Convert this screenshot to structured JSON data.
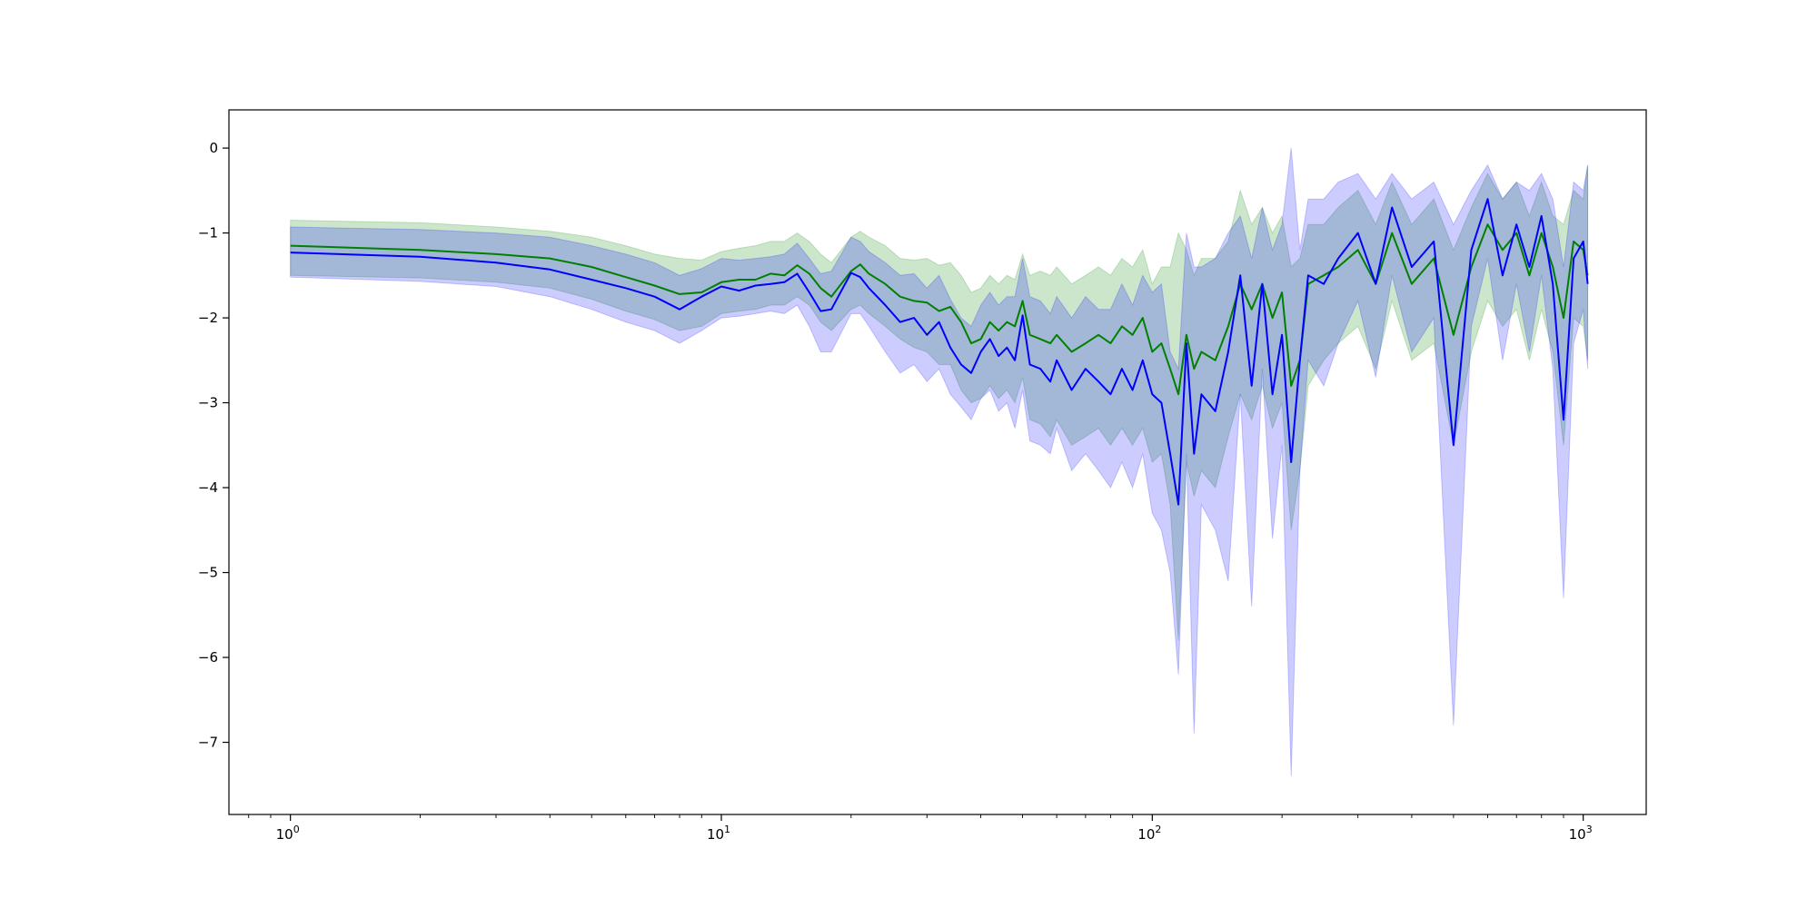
{
  "chart_data": {
    "type": "area",
    "xscale": "log",
    "xlim": [
      0.72,
      1400
    ],
    "ylim": [
      -7.85,
      0.45
    ],
    "grid": false,
    "legend": "none",
    "xticks": [
      {
        "value": 1,
        "base": "10",
        "exp": "0"
      },
      {
        "value": 10,
        "base": "10",
        "exp": "1"
      },
      {
        "value": 100,
        "base": "10",
        "exp": "2"
      },
      {
        "value": 1000,
        "base": "10",
        "exp": "3"
      }
    ],
    "yticks": [
      {
        "value": 0,
        "label": "0"
      },
      {
        "value": -1,
        "label": "−1"
      },
      {
        "value": -2,
        "label": "−2"
      },
      {
        "value": -3,
        "label": "−3"
      },
      {
        "value": -4,
        "label": "−4"
      },
      {
        "value": -5,
        "label": "−5"
      },
      {
        "value": -6,
        "label": "−6"
      },
      {
        "value": -7,
        "label": "−7"
      }
    ],
    "colors": {
      "green": "#008000",
      "blue": "#0000ff",
      "green_band": "#c9e3c9",
      "blue_band": "#ccccff",
      "overlap": "#9eb3d7"
    },
    "series": [
      {
        "color": "green",
        "x": [
          1,
          2,
          3,
          4,
          5,
          6,
          7,
          8,
          9,
          10,
          11,
          12,
          13,
          14,
          15,
          16,
          17,
          18,
          20,
          21,
          22,
          24,
          26,
          28,
          30,
          32,
          34,
          36,
          38,
          40,
          42,
          44,
          46,
          48,
          50,
          52,
          55,
          58,
          60,
          65,
          70,
          75,
          80,
          85,
          90,
          95,
          100,
          105,
          110,
          115,
          120,
          125,
          130,
          140,
          150,
          160,
          170,
          180,
          190,
          200,
          210,
          220,
          230,
          250,
          270,
          300,
          330,
          360,
          400,
          450,
          500,
          550,
          600,
          650,
          700,
          750,
          800,
          850,
          900,
          950,
          1000,
          1024
        ],
        "y": [
          -1.15,
          -1.2,
          -1.25,
          -1.3,
          -1.4,
          -1.52,
          -1.62,
          -1.72,
          -1.7,
          -1.58,
          -1.55,
          -1.55,
          -1.48,
          -1.5,
          -1.38,
          -1.48,
          -1.65,
          -1.75,
          -1.45,
          -1.37,
          -1.48,
          -1.6,
          -1.75,
          -1.8,
          -1.82,
          -1.92,
          -1.87,
          -2.05,
          -2.3,
          -2.25,
          -2.05,
          -2.15,
          -2.05,
          -2.1,
          -1.8,
          -2.2,
          -2.25,
          -2.3,
          -2.2,
          -2.4,
          -2.3,
          -2.2,
          -2.3,
          -2.1,
          -2.2,
          -2.0,
          -2.4,
          -2.3,
          -2.6,
          -2.9,
          -2.2,
          -2.6,
          -2.4,
          -2.5,
          -2.1,
          -1.6,
          -1.9,
          -1.6,
          -2.0,
          -1.7,
          -2.8,
          -2.5,
          -1.6,
          -1.5,
          -1.4,
          -1.2,
          -1.6,
          -1.0,
          -1.6,
          -1.3,
          -2.2,
          -1.4,
          -0.9,
          -1.2,
          -1.0,
          -1.5,
          -1.0,
          -1.4,
          -2.0,
          -1.1,
          -1.2,
          -1.5
        ],
        "lower": [
          -1.5,
          -1.53,
          -1.58,
          -1.65,
          -1.78,
          -1.92,
          -2.02,
          -2.15,
          -2.1,
          -1.95,
          -1.92,
          -1.9,
          -1.85,
          -1.85,
          -1.75,
          -1.85,
          -2.05,
          -2.15,
          -1.9,
          -1.85,
          -1.95,
          -2.1,
          -2.25,
          -2.35,
          -2.4,
          -2.55,
          -2.55,
          -2.85,
          -3.0,
          -2.95,
          -2.8,
          -2.95,
          -2.85,
          -3.0,
          -2.7,
          -3.2,
          -3.25,
          -3.4,
          -3.2,
          -3.5,
          -3.4,
          -3.3,
          -3.5,
          -3.3,
          -3.5,
          -3.3,
          -3.7,
          -3.6,
          -4.2,
          -5.8,
          -3.7,
          -4.1,
          -3.8,
          -4.0,
          -3.4,
          -2.9,
          -3.2,
          -2.8,
          -3.3,
          -3.0,
          -4.5,
          -3.8,
          -2.8,
          -2.5,
          -2.3,
          -2.1,
          -2.6,
          -1.8,
          -2.5,
          -2.3,
          -3.5,
          -2.4,
          -1.8,
          -2.1,
          -1.9,
          -2.5,
          -1.9,
          -2.4,
          -3.5,
          -2.0,
          -2.1,
          -2.5
        ],
        "upper": [
          -0.85,
          -0.88,
          -0.93,
          -0.98,
          -1.05,
          -1.15,
          -1.25,
          -1.3,
          -1.32,
          -1.22,
          -1.18,
          -1.15,
          -1.1,
          -1.1,
          -1.0,
          -1.1,
          -1.25,
          -1.35,
          -1.05,
          -0.98,
          -1.05,
          -1.15,
          -1.3,
          -1.32,
          -1.3,
          -1.38,
          -1.35,
          -1.5,
          -1.7,
          -1.65,
          -1.5,
          -1.6,
          -1.5,
          -1.55,
          -1.25,
          -1.5,
          -1.45,
          -1.5,
          -1.4,
          -1.6,
          -1.5,
          -1.4,
          -1.5,
          -1.3,
          -1.4,
          -1.2,
          -1.6,
          -1.4,
          -1.4,
          -1.0,
          -1.2,
          -1.5,
          -1.3,
          -1.3,
          -1.1,
          -0.5,
          -0.9,
          -0.7,
          -1.0,
          -0.8,
          -1.4,
          -1.3,
          -0.9,
          -0.9,
          -0.7,
          -0.5,
          -0.9,
          -0.4,
          -0.9,
          -0.6,
          -1.2,
          -0.7,
          -0.3,
          -0.6,
          -0.4,
          -0.8,
          -0.4,
          -0.8,
          -0.9,
          -0.5,
          -0.6,
          -0.2
        ]
      },
      {
        "color": "blue",
        "x": [
          1,
          2,
          3,
          4,
          5,
          6,
          7,
          8,
          9,
          10,
          11,
          12,
          13,
          14,
          15,
          16,
          17,
          18,
          20,
          21,
          22,
          24,
          26,
          28,
          30,
          32,
          34,
          36,
          38,
          40,
          42,
          44,
          46,
          48,
          50,
          52,
          55,
          58,
          60,
          65,
          70,
          75,
          80,
          85,
          90,
          95,
          100,
          105,
          110,
          115,
          120,
          125,
          130,
          140,
          150,
          160,
          170,
          180,
          190,
          200,
          210,
          220,
          230,
          250,
          270,
          300,
          330,
          360,
          400,
          450,
          500,
          550,
          600,
          650,
          700,
          750,
          800,
          850,
          900,
          950,
          1000,
          1024
        ],
        "y": [
          -1.23,
          -1.28,
          -1.35,
          -1.43,
          -1.55,
          -1.65,
          -1.75,
          -1.9,
          -1.75,
          -1.63,
          -1.68,
          -1.62,
          -1.6,
          -1.58,
          -1.48,
          -1.7,
          -1.92,
          -1.9,
          -1.47,
          -1.52,
          -1.65,
          -1.85,
          -2.05,
          -2.0,
          -2.2,
          -2.05,
          -2.35,
          -2.55,
          -2.65,
          -2.4,
          -2.25,
          -2.45,
          -2.35,
          -2.5,
          -1.97,
          -2.55,
          -2.6,
          -2.75,
          -2.5,
          -2.85,
          -2.6,
          -2.75,
          -2.9,
          -2.6,
          -2.85,
          -2.5,
          -2.9,
          -3.0,
          -3.6,
          -4.2,
          -2.3,
          -3.6,
          -2.9,
          -3.1,
          -2.4,
          -1.5,
          -2.8,
          -1.6,
          -2.9,
          -2.2,
          -3.7,
          -2.5,
          -1.5,
          -1.6,
          -1.3,
          -1.0,
          -1.6,
          -0.7,
          -1.4,
          -1.1,
          -3.5,
          -1.2,
          -0.6,
          -1.5,
          -0.9,
          -1.4,
          -0.8,
          -1.6,
          -3.2,
          -1.3,
          -1.1,
          -1.6
        ],
        "lower": [
          -1.52,
          -1.57,
          -1.63,
          -1.75,
          -1.9,
          -2.05,
          -2.15,
          -2.3,
          -2.15,
          -2.0,
          -1.98,
          -1.95,
          -1.92,
          -1.95,
          -1.85,
          -2.1,
          -2.4,
          -2.4,
          -1.95,
          -1.95,
          -2.1,
          -2.4,
          -2.65,
          -2.55,
          -2.75,
          -2.6,
          -2.9,
          -3.05,
          -3.2,
          -2.95,
          -2.85,
          -3.1,
          -3.0,
          -3.3,
          -2.85,
          -3.45,
          -3.5,
          -3.6,
          -3.3,
          -3.8,
          -3.6,
          -3.8,
          -4.0,
          -3.7,
          -4.0,
          -3.6,
          -4.3,
          -4.5,
          -5.0,
          -6.2,
          -3.6,
          -6.9,
          -4.2,
          -4.5,
          -5.1,
          -2.9,
          -5.4,
          -2.6,
          -4.6,
          -3.5,
          -7.4,
          -3.8,
          -2.5,
          -2.8,
          -2.3,
          -1.8,
          -2.7,
          -1.5,
          -2.4,
          -2.0,
          -6.8,
          -2.1,
          -1.3,
          -2.5,
          -1.6,
          -2.4,
          -1.5,
          -2.6,
          -5.3,
          -2.3,
          -1.9,
          -2.6
        ],
        "upper": [
          -0.93,
          -0.96,
          -1.0,
          -1.05,
          -1.15,
          -1.25,
          -1.35,
          -1.5,
          -1.42,
          -1.3,
          -1.32,
          -1.3,
          -1.28,
          -1.25,
          -1.12,
          -1.3,
          -1.48,
          -1.45,
          -1.05,
          -1.1,
          -1.22,
          -1.35,
          -1.5,
          -1.48,
          -1.65,
          -1.5,
          -1.78,
          -2.0,
          -2.1,
          -1.85,
          -1.7,
          -1.85,
          -1.75,
          -1.75,
          -1.3,
          -1.75,
          -1.8,
          -1.95,
          -1.75,
          -2.0,
          -1.75,
          -1.9,
          -1.9,
          -1.6,
          -1.85,
          -1.5,
          -1.7,
          -1.6,
          -2.4,
          -2.6,
          -1.0,
          -1.4,
          -1.4,
          -1.3,
          -1.0,
          -0.8,
          -1.3,
          -0.7,
          -1.2,
          -0.9,
          0.0,
          -1.2,
          -0.6,
          -0.6,
          -0.4,
          -0.3,
          -0.6,
          -0.3,
          -0.6,
          -0.4,
          -0.9,
          -0.5,
          -0.2,
          -0.6,
          -0.4,
          -0.5,
          -0.3,
          -0.6,
          -1.4,
          -0.4,
          -0.5,
          -0.2
        ]
      }
    ]
  }
}
